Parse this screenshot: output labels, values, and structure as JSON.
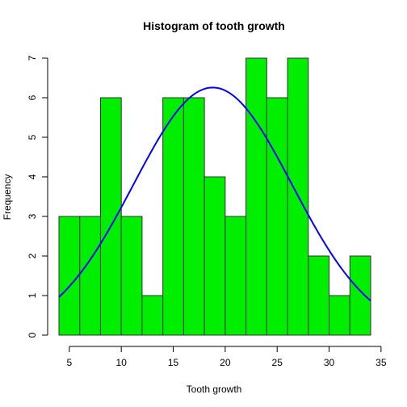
{
  "chart_data": {
    "type": "bar",
    "title": "Histogram of tooth growth",
    "xlabel": "Tooth growth",
    "ylabel": "Frequency",
    "xlim": [
      4,
      34
    ],
    "ylim": [
      0,
      7
    ],
    "x_ticks": [
      5,
      10,
      15,
      20,
      25,
      30,
      35
    ],
    "y_ticks": [
      0,
      1,
      2,
      3,
      4,
      5,
      6,
      7
    ],
    "bins": [
      {
        "start": 4,
        "end": 6,
        "count": 3
      },
      {
        "start": 6,
        "end": 8,
        "count": 3
      },
      {
        "start": 8,
        "end": 10,
        "count": 6
      },
      {
        "start": 10,
        "end": 12,
        "count": 3
      },
      {
        "start": 12,
        "end": 14,
        "count": 1
      },
      {
        "start": 14,
        "end": 16,
        "count": 6
      },
      {
        "start": 16,
        "end": 18,
        "count": 6
      },
      {
        "start": 18,
        "end": 20,
        "count": 4
      },
      {
        "start": 20,
        "end": 22,
        "count": 3
      },
      {
        "start": 22,
        "end": 24,
        "count": 7
      },
      {
        "start": 24,
        "end": 26,
        "count": 6
      },
      {
        "start": 26,
        "end": 28,
        "count": 7
      },
      {
        "start": 28,
        "end": 30,
        "count": 2
      },
      {
        "start": 30,
        "end": 32,
        "count": 1
      },
      {
        "start": 32,
        "end": 34,
        "count": 2
      }
    ],
    "normal_curve": {
      "mean": 18.8,
      "sd": 7.65,
      "n": 60,
      "bin_width": 2,
      "x_range": [
        4,
        34
      ]
    },
    "colors": {
      "bar_fill": "#00ee00",
      "bar_border": "#333333",
      "curve": "#0000ff",
      "axis": "#000000"
    },
    "grid": false
  }
}
